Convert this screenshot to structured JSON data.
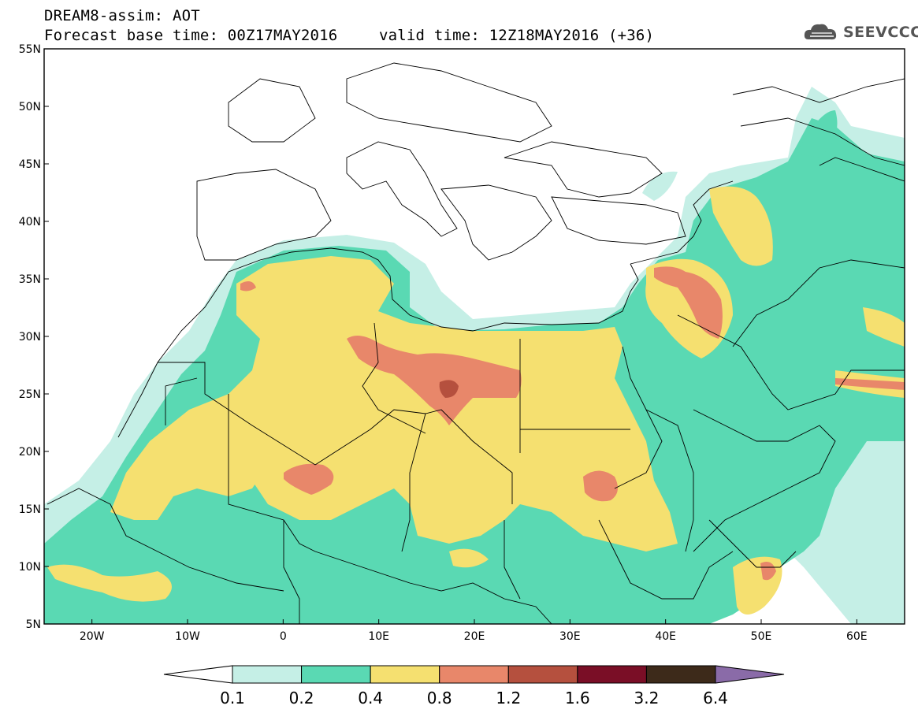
{
  "header": {
    "line1": "DREAM8-assim: AOT",
    "line2": "Forecast base time: 00Z17MAY2016",
    "line3": "valid time: 12Z18MAY2016 (+36)"
  },
  "logo": {
    "text": "SEEVCCC",
    "icon": "cloud-icon"
  },
  "map": {
    "lat_labels": [
      "55N",
      "50N",
      "45N",
      "40N",
      "35N",
      "30N",
      "25N",
      "20N",
      "15N",
      "10N",
      "5N"
    ],
    "lon_labels": [
      "20W",
      "10W",
      "0",
      "10E",
      "20E",
      "30E",
      "40E",
      "50E",
      "60E"
    ],
    "lat_range": [
      5,
      55
    ],
    "lon_range": [
      -25,
      65
    ]
  },
  "colorbar": {
    "labels": [
      "0.1",
      "0.2",
      "0.4",
      "0.8",
      "1.2",
      "1.6",
      "3.2",
      "6.4"
    ],
    "colors": [
      "#ffffff",
      "#c5efe6",
      "#5ad9b3",
      "#f5e070",
      "#e8876a",
      "#b5503e",
      "#7a0e26",
      "#3d2a1a",
      "#8a6ba8"
    ]
  }
}
